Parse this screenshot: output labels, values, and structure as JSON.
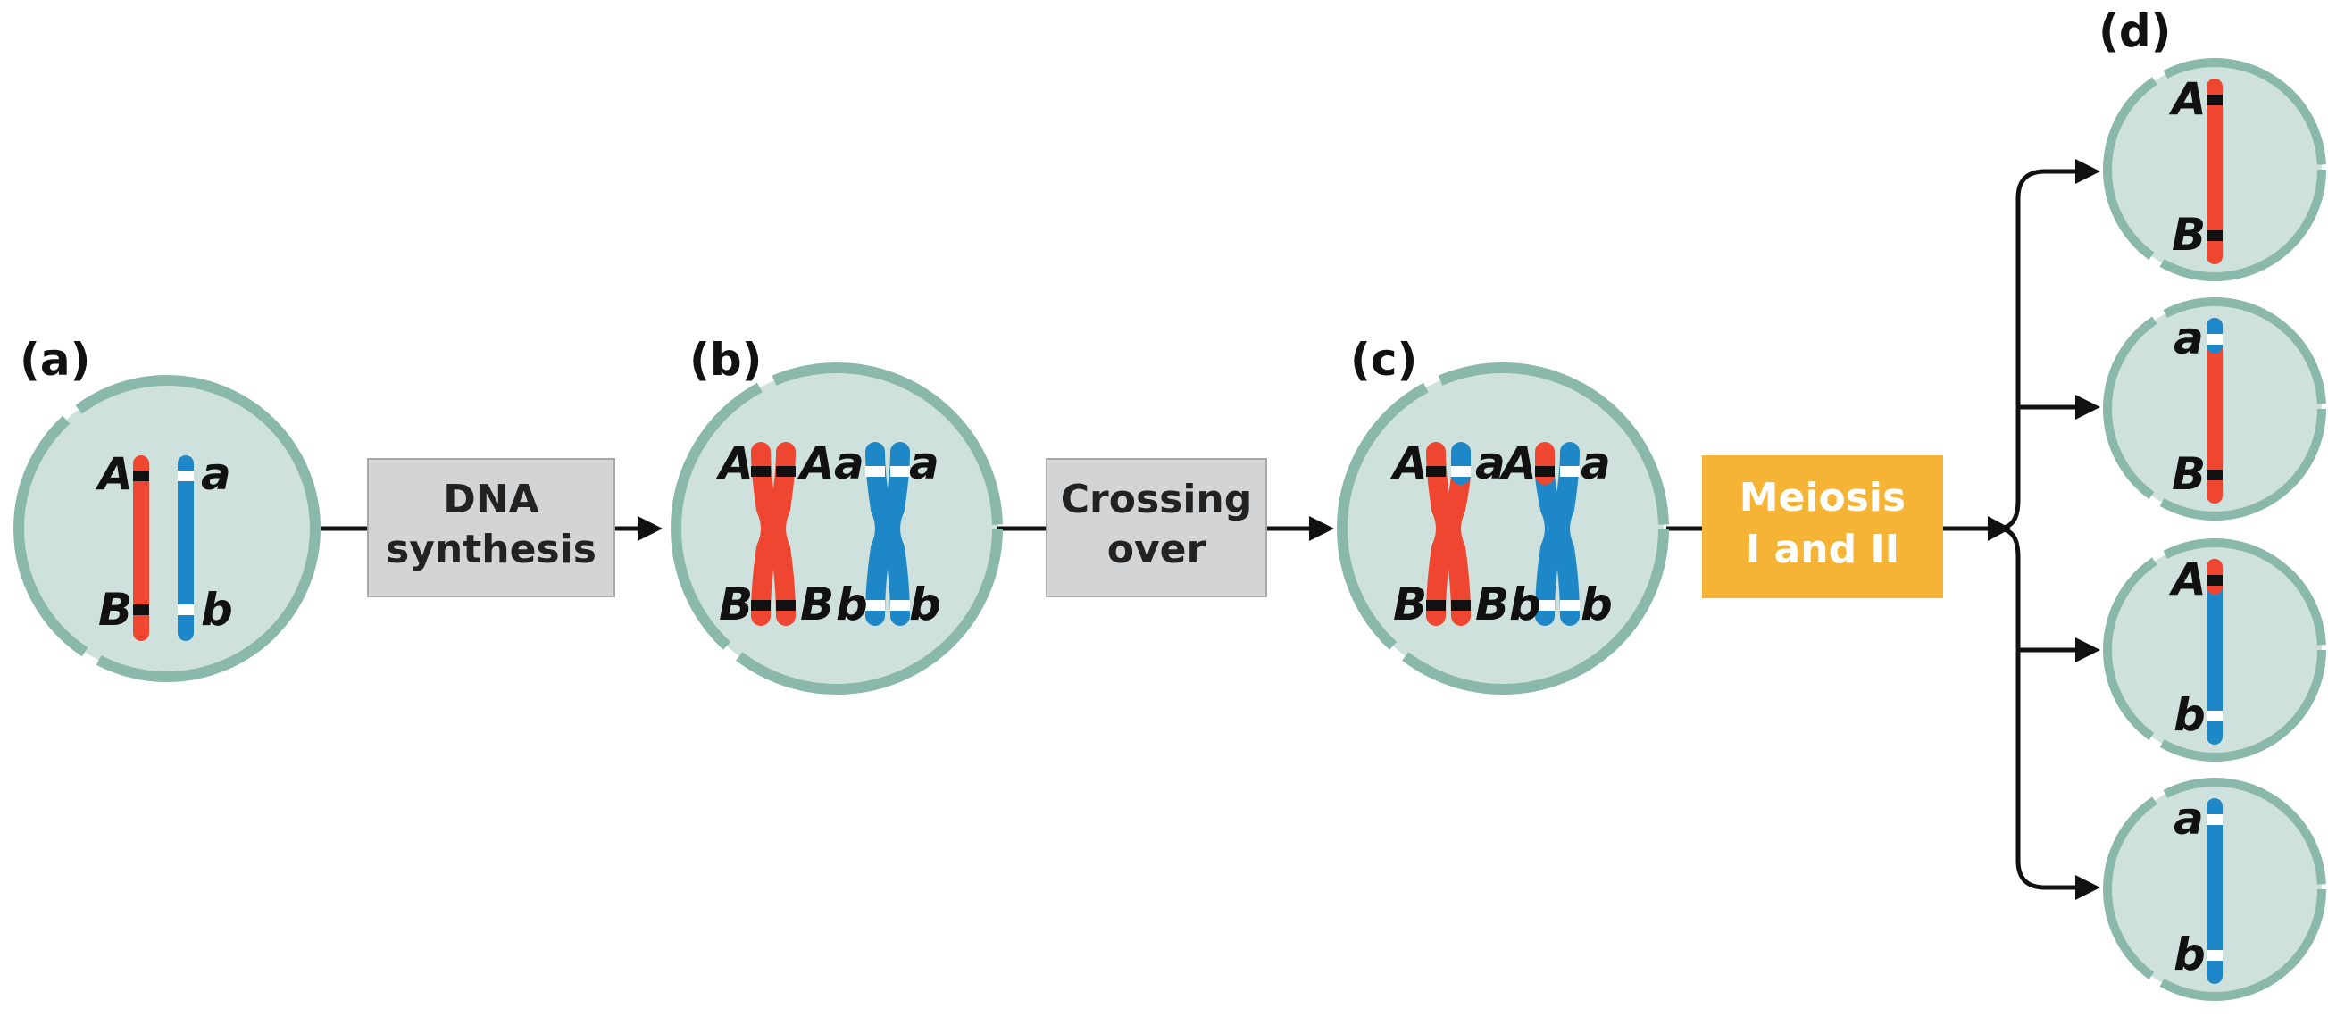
{
  "colors": {
    "cell_fill": "#cfe1dc",
    "cell_ring": "#8ab8ab",
    "red": "#ef4631",
    "blue": "#1e87c8",
    "black_band": "#111111",
    "white_band": "#ffffff",
    "step_box_gray": "#d3d4d6",
    "step_box_orange": "#f5b435",
    "arrow": "#111111"
  },
  "panels": {
    "a": {
      "label": "(a)"
    },
    "b": {
      "label": "(b)"
    },
    "c": {
      "label": "(c)"
    },
    "d": {
      "label": "(d)"
    }
  },
  "steps": {
    "dna": {
      "line1": "DNA",
      "line2": "synthesis"
    },
    "crossing": {
      "line1": "Crossing",
      "line2": "over"
    },
    "meiosis": {
      "line1": "Meiosis",
      "line2": "I and II"
    }
  },
  "alleles": {
    "A": "A",
    "a": "a",
    "B": "B",
    "b": "b"
  }
}
